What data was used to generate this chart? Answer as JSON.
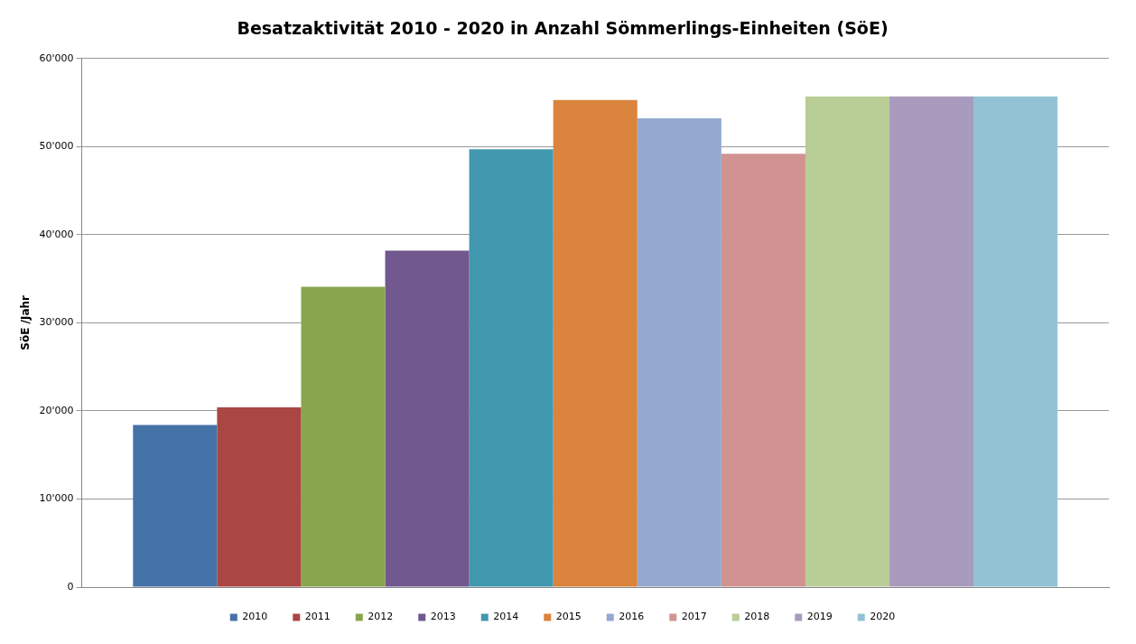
{
  "chart_data": {
    "type": "bar",
    "title": "Besatzaktivität 2010 - 2020 in Anzahl Sömmerlings-Einheiten (SöE)",
    "ylabel": "SöE /Jahr",
    "categories": [
      null
    ],
    "series": [
      {
        "name": "2010",
        "color": "#4572a7",
        "values": [
          18400
        ]
      },
      {
        "name": "2011",
        "color": "#aa4643",
        "values": [
          20400
        ]
      },
      {
        "name": "2012",
        "color": "#89a54e",
        "values": [
          34100
        ]
      },
      {
        "name": "2013",
        "color": "#71588f",
        "values": [
          38200
        ]
      },
      {
        "name": "2014",
        "color": "#4198af",
        "values": [
          49700
        ]
      },
      {
        "name": "2015",
        "color": "#db843d",
        "values": [
          55300
        ]
      },
      {
        "name": "2016",
        "color": "#93a9cf",
        "values": [
          53200
        ]
      },
      {
        "name": "2017",
        "color": "#d19392",
        "values": [
          49200
        ]
      },
      {
        "name": "2018",
        "color": "#b9cd96",
        "values": [
          55700
        ]
      },
      {
        "name": "2019",
        "color": "#a99bbd",
        "values": [
          55700
        ]
      },
      {
        "name": "2020",
        "color": "#92c3d4",
        "values": [
          55700
        ]
      }
    ],
    "ylim": [
      0,
      60000
    ],
    "yticks": [
      {
        "value": 0,
        "label": "0"
      },
      {
        "value": 10000,
        "label": "10'000"
      },
      {
        "value": 20000,
        "label": "20'000"
      },
      {
        "value": 30000,
        "label": "30'000"
      },
      {
        "value": 40000,
        "label": "40'000"
      },
      {
        "value": 50000,
        "label": "50'000"
      },
      {
        "value": 60000,
        "label": "60'000"
      }
    ],
    "grid": "y",
    "legend": "bottom"
  }
}
